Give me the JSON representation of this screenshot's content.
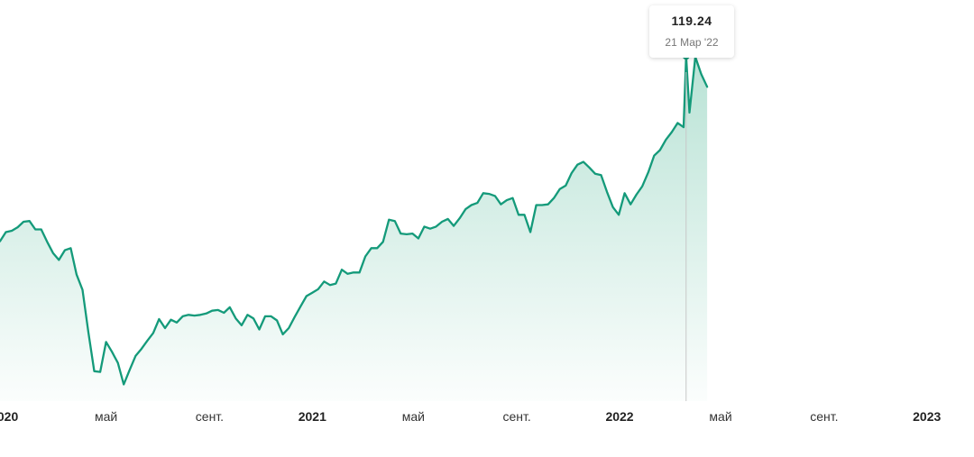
{
  "chart_data": {
    "type": "area",
    "x_ticks": [
      {
        "label": "2020",
        "date": "2020-01-01",
        "major": true
      },
      {
        "label": "май",
        "date": "2020-05-01",
        "major": false
      },
      {
        "label": "сент.",
        "date": "2020-09-01",
        "major": false
      },
      {
        "label": "2021",
        "date": "2021-01-01",
        "major": true
      },
      {
        "label": "май",
        "date": "2021-05-01",
        "major": false
      },
      {
        "label": "сент.",
        "date": "2021-09-01",
        "major": false
      },
      {
        "label": "2022",
        "date": "2022-01-01",
        "major": true
      },
      {
        "label": "май",
        "date": "2022-05-01",
        "major": false
      },
      {
        "label": "сент.",
        "date": "2022-09-01",
        "major": false
      },
      {
        "label": "2023",
        "date": "2023-01-01",
        "major": true
      }
    ],
    "x_range": [
      "2019-12-27",
      "2023-02-26"
    ],
    "series": [
      {
        "color": "#149a7a",
        "points": [
          [
            "2019-12-27",
            66.0
          ],
          [
            "2020-01-03",
            68.6
          ],
          [
            "2020-01-10",
            69.0
          ],
          [
            "2020-01-17",
            70.0
          ],
          [
            "2020-01-24",
            71.6
          ],
          [
            "2020-01-31",
            71.8
          ],
          [
            "2020-02-07",
            69.4
          ],
          [
            "2020-02-14",
            69.4
          ],
          [
            "2020-02-21",
            65.8
          ],
          [
            "2020-02-28",
            62.6
          ],
          [
            "2020-03-06",
            60.6
          ],
          [
            "2020-03-13",
            63.4
          ],
          [
            "2020-03-20",
            64.0
          ],
          [
            "2020-03-27",
            56.4
          ],
          [
            "2020-04-03",
            52.0
          ],
          [
            "2020-04-10",
            39.8
          ],
          [
            "2020-04-17",
            28.6
          ],
          [
            "2020-04-24",
            28.4
          ],
          [
            "2020-05-01",
            37.0
          ],
          [
            "2020-05-08",
            34.2
          ],
          [
            "2020-05-15",
            31.0
          ],
          [
            "2020-05-22",
            24.8
          ],
          [
            "2020-05-29",
            29.0
          ],
          [
            "2020-06-05",
            33.0
          ],
          [
            "2020-06-12",
            35.0
          ],
          [
            "2020-06-19",
            37.4
          ],
          [
            "2020-06-26",
            39.6
          ],
          [
            "2020-07-03",
            43.6
          ],
          [
            "2020-07-10",
            41.0
          ],
          [
            "2020-07-17",
            43.4
          ],
          [
            "2020-07-24",
            42.6
          ],
          [
            "2020-07-31",
            44.4
          ],
          [
            "2020-08-07",
            44.8
          ],
          [
            "2020-08-14",
            44.6
          ],
          [
            "2020-08-21",
            44.8
          ],
          [
            "2020-08-28",
            45.2
          ],
          [
            "2020-09-04",
            46.0
          ],
          [
            "2020-09-11",
            46.2
          ],
          [
            "2020-09-18",
            45.4
          ],
          [
            "2020-09-25",
            47.0
          ],
          [
            "2020-10-02",
            43.8
          ],
          [
            "2020-10-09",
            41.8
          ],
          [
            "2020-10-16",
            44.8
          ],
          [
            "2020-10-23",
            43.8
          ],
          [
            "2020-10-30",
            40.6
          ],
          [
            "2020-11-06",
            44.4
          ],
          [
            "2020-11-13",
            44.4
          ],
          [
            "2020-11-20",
            43.2
          ],
          [
            "2020-11-27",
            39.2
          ],
          [
            "2020-12-04",
            41.0
          ],
          [
            "2020-12-11",
            44.2
          ],
          [
            "2020-12-18",
            47.2
          ],
          [
            "2020-12-25",
            50.2
          ],
          [
            "2021-01-01",
            51.2
          ],
          [
            "2021-01-08",
            52.2
          ],
          [
            "2021-01-15",
            54.4
          ],
          [
            "2021-01-22",
            53.4
          ],
          [
            "2021-01-29",
            53.8
          ],
          [
            "2021-02-05",
            57.8
          ],
          [
            "2021-02-12",
            56.6
          ],
          [
            "2021-02-19",
            57.0
          ],
          [
            "2021-02-26",
            57.0
          ],
          [
            "2021-03-05",
            61.6
          ],
          [
            "2021-03-12",
            64.0
          ],
          [
            "2021-03-19",
            64.0
          ],
          [
            "2021-03-26",
            65.8
          ],
          [
            "2021-04-02",
            72.2
          ],
          [
            "2021-04-09",
            71.8
          ],
          [
            "2021-04-16",
            68.2
          ],
          [
            "2021-04-23",
            68.0
          ],
          [
            "2021-04-30",
            68.2
          ],
          [
            "2021-05-07",
            66.8
          ],
          [
            "2021-05-14",
            70.2
          ],
          [
            "2021-05-21",
            69.6
          ],
          [
            "2021-05-28",
            70.2
          ],
          [
            "2021-06-04",
            71.6
          ],
          [
            "2021-06-11",
            72.4
          ],
          [
            "2021-06-18",
            70.4
          ],
          [
            "2021-06-25",
            72.6
          ],
          [
            "2021-07-02",
            75.2
          ],
          [
            "2021-07-09",
            76.4
          ],
          [
            "2021-07-16",
            77.0
          ],
          [
            "2021-07-23",
            79.8
          ],
          [
            "2021-07-30",
            79.6
          ],
          [
            "2021-08-06",
            79.0
          ],
          [
            "2021-08-13",
            76.6
          ],
          [
            "2021-08-20",
            77.8
          ],
          [
            "2021-08-27",
            78.4
          ],
          [
            "2021-09-03",
            73.6
          ],
          [
            "2021-09-10",
            73.6
          ],
          [
            "2021-09-17",
            68.6
          ],
          [
            "2021-09-24",
            76.4
          ],
          [
            "2021-10-01",
            76.4
          ],
          [
            "2021-10-08",
            76.6
          ],
          [
            "2021-10-15",
            78.4
          ],
          [
            "2021-10-22",
            81.0
          ],
          [
            "2021-10-29",
            82.0
          ],
          [
            "2021-11-05",
            85.6
          ],
          [
            "2021-11-12",
            88.0
          ],
          [
            "2021-11-19",
            88.8
          ],
          [
            "2021-11-26",
            87.2
          ],
          [
            "2021-12-03",
            85.4
          ],
          [
            "2021-12-10",
            85.0
          ],
          [
            "2021-12-17",
            80.2
          ],
          [
            "2021-12-24",
            75.8
          ],
          [
            "2021-12-31",
            73.6
          ],
          [
            "2022-01-07",
            79.8
          ],
          [
            "2022-01-14",
            76.6
          ],
          [
            "2022-01-21",
            79.4
          ],
          [
            "2022-01-28",
            81.8
          ],
          [
            "2022-02-04",
            85.8
          ],
          [
            "2022-02-11",
            90.6
          ],
          [
            "2022-02-18",
            92.2
          ],
          [
            "2022-02-25",
            95.2
          ],
          [
            "2022-03-04",
            97.4
          ],
          [
            "2022-03-11",
            100.0
          ],
          [
            "2022-03-18",
            98.8
          ],
          [
            "2022-03-25",
            103.0
          ],
          [
            "2022-04-01",
            119.0
          ],
          [
            "2022-04-08",
            114.0
          ],
          [
            "2022-04-15",
            110.4
          ],
          [
            "2022-03-21",
            119.24
          ]
        ]
      }
    ],
    "highlight": {
      "date": "2022-03-21",
      "value": 119.24,
      "value_label": "119.24",
      "date_label": "21 Мар '22"
    },
    "grid": false,
    "legend": "none"
  }
}
